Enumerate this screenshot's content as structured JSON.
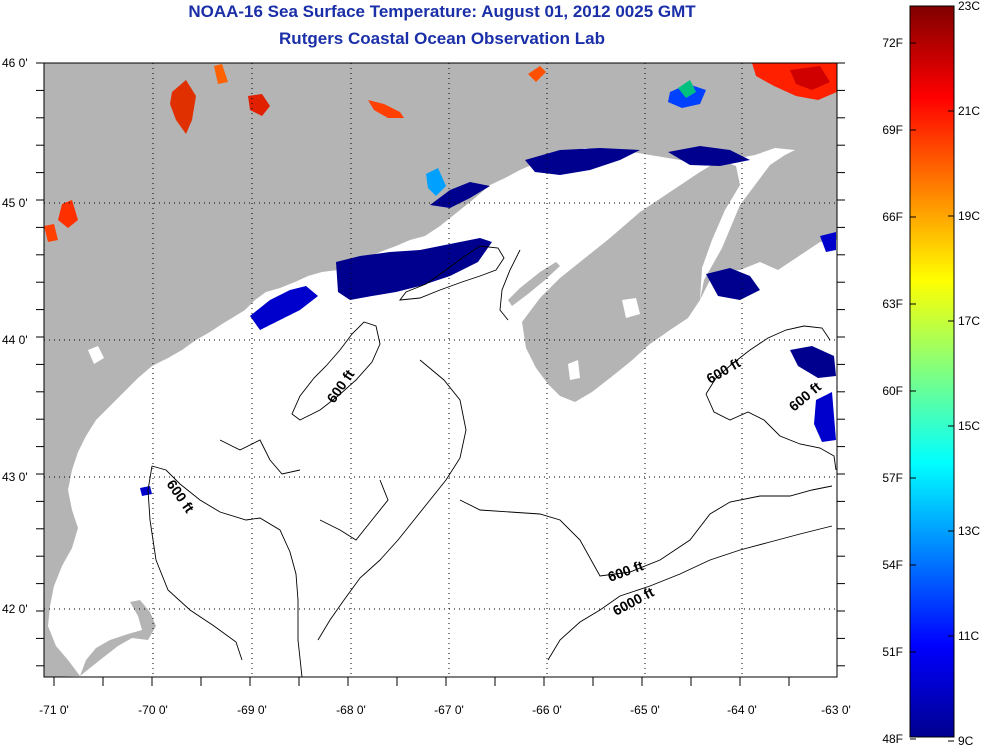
{
  "title_line1": "NOAA-16 Sea Surface Temperature:  August 01, 2012 0025 GMT",
  "title_line2": "Rutgers Coastal Ocean Observation Lab",
  "lat_labels": [
    "46 0'",
    "45 0'",
    "44 0'",
    "43 0'",
    "42 0'"
  ],
  "lon_labels": [
    "-71 0'",
    "-70 0'",
    "-69 0'",
    "-68 0'",
    "-67 0'",
    "-66 0'",
    "-65 0'",
    "-64 0'",
    "-63 0'"
  ],
  "contour_labels": [
    "600 ft",
    "600 ft",
    "600 ft",
    "600 ft",
    "600 ft",
    "6000 ft"
  ],
  "colorbar": {
    "fahrenheit": [
      "72F",
      "69F",
      "66F",
      "63F",
      "60F",
      "57F",
      "54F",
      "51F",
      "48F"
    ],
    "celsius": [
      "23C",
      "21C",
      "19C",
      "17C",
      "15C",
      "13C",
      "11C",
      "9C"
    ],
    "colors": [
      "#00008f",
      "#0000ff",
      "#0080ff",
      "#00ffff",
      "#80ff80",
      "#ffff00",
      "#ff8000",
      "#ff0000",
      "#800000"
    ]
  },
  "colors": {
    "land": "#b4b4b4",
    "title": "#1a2fa8",
    "cloud": "#ffffff"
  }
}
